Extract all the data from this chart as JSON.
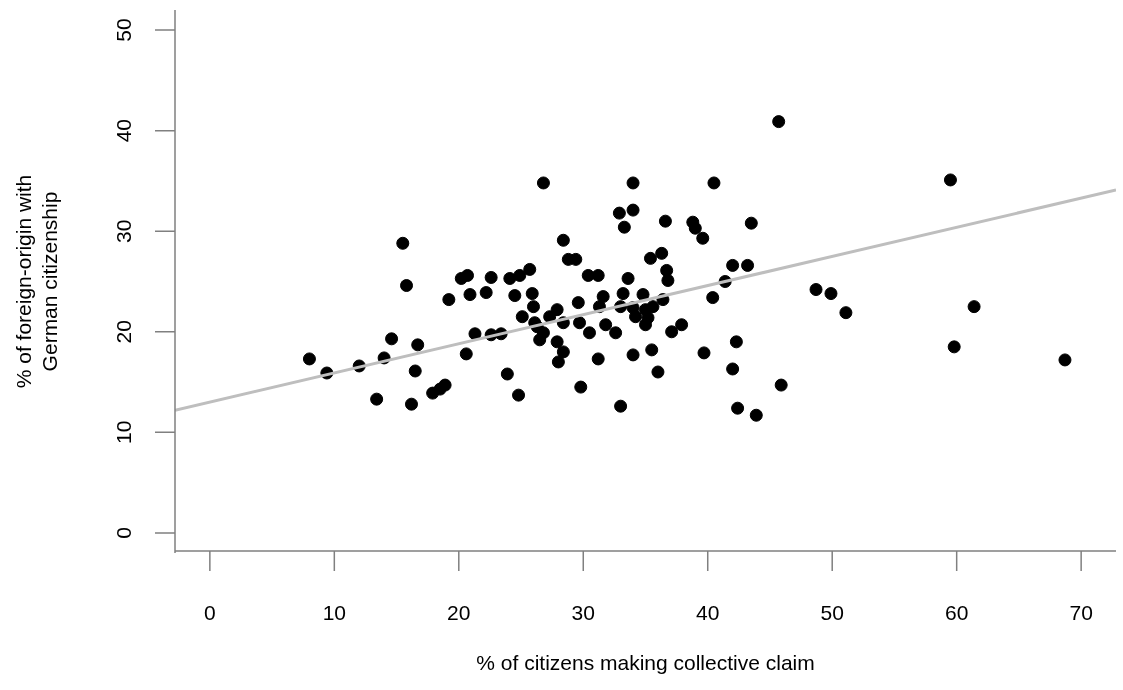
{
  "chart_data": {
    "type": "scatter",
    "xlabel": "% of citizens making collective claim",
    "ylabel": "% of foreign-origin with\nGerman citizenship",
    "xlim": [
      -2.8,
      72.8
    ],
    "ylim": [
      -2,
      52
    ],
    "xticks": [
      0,
      10,
      20,
      30,
      40,
      50,
      60,
      70
    ],
    "yticks": [
      0,
      10,
      20,
      30,
      40,
      50
    ],
    "series": [
      {
        "color": "#000000",
        "marker": "circle",
        "x": [
          8.0,
          9.4,
          12.0,
          13.4,
          14.0,
          14.6,
          15.5,
          15.8,
          16.2,
          16.5,
          16.7,
          17.9,
          18.5,
          18.9,
          19.2,
          20.6,
          20.2,
          20.7,
          20.9,
          21.3,
          22.2,
          22.6,
          22.6,
          23.4,
          23.9,
          24.1,
          24.5,
          24.8,
          24.9,
          25.7,
          25.9,
          25.1,
          26.0,
          26.1,
          26.5,
          26.8,
          34.0,
          40.5,
          32.9,
          34.0,
          33.3,
          36.6,
          38.8,
          39.0,
          39.6,
          43.5,
          28.4,
          28.8,
          29.4,
          30.4,
          31.2,
          35.4,
          36.3,
          36.7,
          36.8,
          42.0,
          43.2,
          41.4,
          40.4,
          33.6,
          31.6,
          31.3,
          29.6,
          33.2,
          34.8,
          36.4,
          33.0,
          34.0,
          35.0,
          35.6,
          34.2,
          35.2,
          35.0,
          37.1,
          37.9,
          31.8,
          32.6,
          30.5,
          29.7,
          27.9,
          27.3,
          26.8,
          28.4,
          27.9,
          28.4,
          28.0,
          31.2,
          34.0,
          35.5,
          39.7,
          42.3,
          42.0,
          36.0,
          29.8,
          33.0,
          42.4,
          43.9,
          45.9,
          26.3,
          45.7,
          59.5,
          48.7,
          49.9,
          51.1,
          61.4,
          59.8,
          68.7
        ],
        "values": [
          17.3,
          15.9,
          16.6,
          13.3,
          17.4,
          19.3,
          28.8,
          24.6,
          12.8,
          16.1,
          18.7,
          13.9,
          14.3,
          14.7,
          23.2,
          17.8,
          25.3,
          25.6,
          23.7,
          19.8,
          23.9,
          25.4,
          19.7,
          19.8,
          15.8,
          25.3,
          23.6,
          13.7,
          25.6,
          26.2,
          23.8,
          21.5,
          22.5,
          20.9,
          19.2,
          34.8,
          34.8,
          34.8,
          31.8,
          32.1,
          30.4,
          31.0,
          30.9,
          30.3,
          29.3,
          30.8,
          29.1,
          27.2,
          27.2,
          25.6,
          25.6,
          27.3,
          27.8,
          26.1,
          25.1,
          26.6,
          26.6,
          25.0,
          23.4,
          25.3,
          23.5,
          22.5,
          22.9,
          23.8,
          23.7,
          23.2,
          22.5,
          22.4,
          22.2,
          22.5,
          21.5,
          21.4,
          20.7,
          20.0,
          20.7,
          20.7,
          19.9,
          19.9,
          20.9,
          22.2,
          21.5,
          19.9,
          20.9,
          19.0,
          18.0,
          17.0,
          17.3,
          17.7,
          18.2,
          17.9,
          19.0,
          16.3,
          16.0,
          14.5,
          12.6,
          12.4,
          11.7,
          14.7,
          20.5,
          40.9,
          35.1,
          24.2,
          23.8,
          21.9,
          22.5,
          18.5,
          17.2
        ]
      },
      {
        "type": "line",
        "marker": "none",
        "color": "#bebebe",
        "x": [
          -2.8,
          72.8
        ],
        "values": [
          12.2,
          34.1
        ]
      }
    ]
  }
}
